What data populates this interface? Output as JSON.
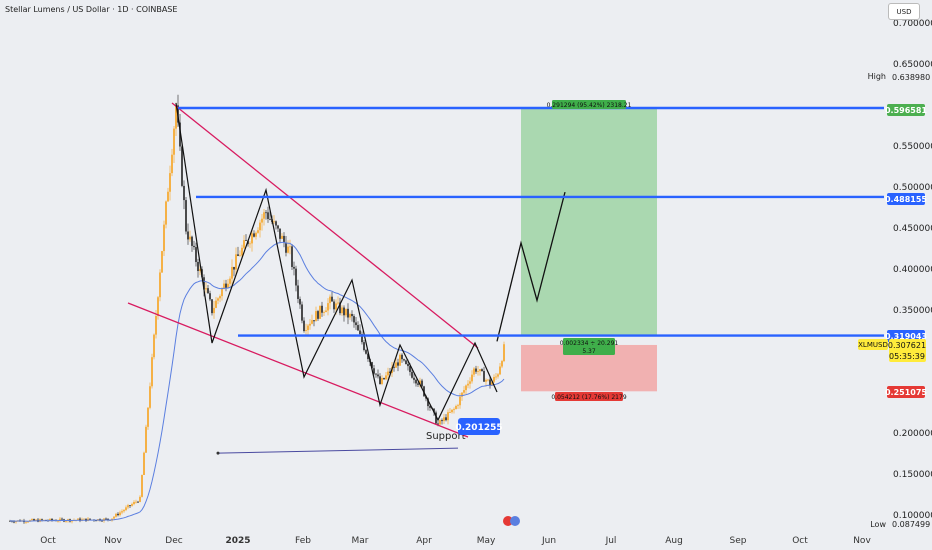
{
  "header": {
    "symbol_title": "Stellar Lumens / US Dollar · 1D · COINBASE",
    "currency": "USD"
  },
  "colors": {
    "background": "#eceef2",
    "level_line": "#2962ff",
    "wedge": "#d81b60",
    "ma": "#5b7fe0",
    "up": "#f7a21b",
    "down": "#222222",
    "profit_zone": "#9fd4a5",
    "loss_zone": "#f2a6a6",
    "profit_label": "#3fae4a",
    "loss_label": "#e53935",
    "price_tag": "#ffeb3b"
  },
  "chart_data": {
    "type": "candlestick",
    "x_tick_labels": [
      "Oct",
      "Nov",
      "Dec",
      "2025",
      "Feb",
      "Mar",
      "Apr",
      "May",
      "Jun",
      "Jul",
      "Aug",
      "Sep",
      "Oct",
      "Nov"
    ],
    "y_ticks": [
      "0.700000",
      "0.650000",
      "0.550000",
      "0.500000",
      "0.450000",
      "0.400000",
      "0.350000",
      "0.200000",
      "0.150000",
      "0.100000"
    ],
    "ylim": [
      0.08,
      0.72
    ],
    "closes_by_month": [
      {
        "month": "Oct",
        "close": 0.093
      },
      {
        "month": "Nov",
        "close": 0.095
      },
      {
        "month": "late Nov",
        "close": 0.23
      },
      {
        "month": "Dec",
        "close": 0.6
      },
      {
        "month": "2025",
        "close": 0.43
      },
      {
        "month": "mid Jan",
        "close": 0.47
      },
      {
        "month": "Feb",
        "close": 0.4
      },
      {
        "month": "Mar",
        "close": 0.31
      },
      {
        "month": "Apr",
        "close": 0.22
      },
      {
        "month": "May",
        "close": 0.29
      }
    ],
    "levels": [
      {
        "name": "target",
        "label": "0.596581",
        "value": 0.596581
      },
      {
        "name": "resistance",
        "label": "0.488155",
        "value": 0.488155
      },
      {
        "name": "entry",
        "label": "0.319043",
        "value": 0.319043
      },
      {
        "name": "stop",
        "label": "0.251075",
        "value": 0.251075
      }
    ],
    "price_tags": {
      "high_label": "High",
      "high_value": "0.638980",
      "low_label": "Low",
      "low_value": "0.087499",
      "symbol": "XLMUSD",
      "last_price": "0.307621",
      "countdown": "05:35:39"
    },
    "support": {
      "label": "Support",
      "value_label": "0.201255",
      "value": 0.201255
    },
    "position_box": {
      "profit_text": "0.291294 (95.42%) 2318.21",
      "ratio_text_line1": "0.002334 ÷ 20.291",
      "ratio_text_line2": "5.37",
      "loss_text": "0.054212 (17.76%) 2179"
    },
    "projection_path_prices": [
      0.312,
      0.432,
      0.362,
      0.494
    ]
  }
}
